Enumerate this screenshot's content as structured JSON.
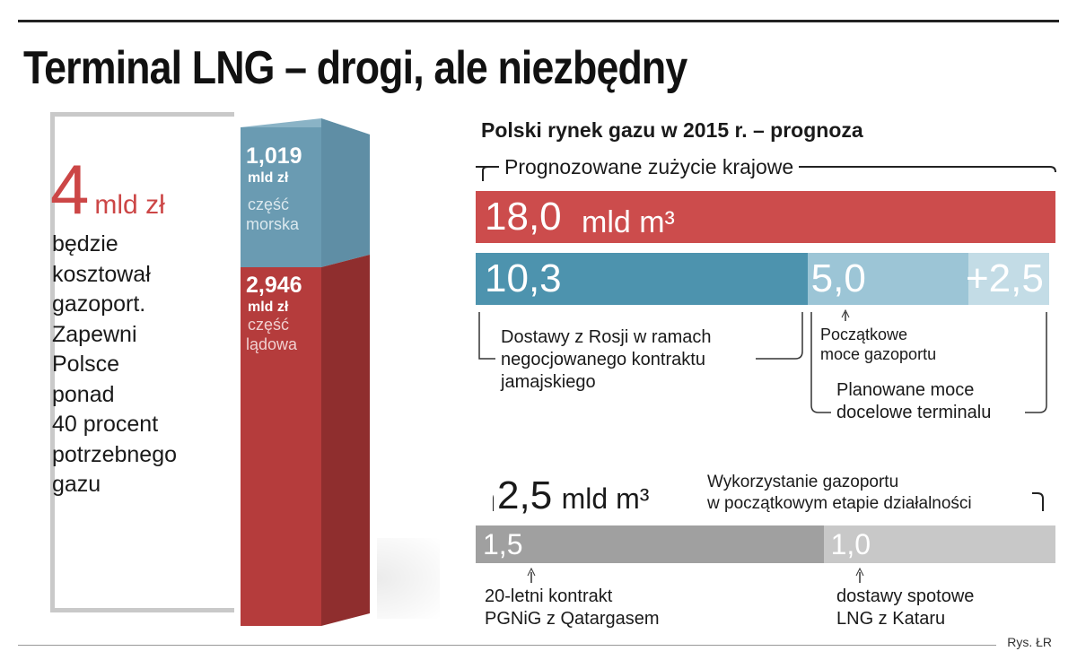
{
  "title": "Terminal LNG – drogi, ale niezbędny",
  "cost": {
    "value": "4",
    "unit": "mld zł",
    "description": [
      "będzie",
      "kosztował",
      "gazoport.",
      "Zapewni",
      "Polsce",
      "ponad",
      "40 procent",
      "potrzebnego",
      "gazu"
    ]
  },
  "subtitle": "Polski rynek gazu w 2015 r. – prognoza",
  "credit": "Rys. ŁR",
  "colors": {
    "red": "#cc4c4c",
    "blue": "#4d93ae",
    "light_blue": "#9cc5d6",
    "lighter_blue": "#c3dce6",
    "grey_dark": "#a0a0a0",
    "grey_light": "#c8c8c8",
    "column_sea": "#6a9bb2",
    "column_land": "#b53c3c"
  },
  "chart_data": [
    {
      "type": "bar",
      "title": "",
      "stacked": true,
      "categories": [
        "gazoport"
      ],
      "series": [
        {
          "name": "część lądowa",
          "values": [
            2.946
          ],
          "label": "2,946",
          "unit": "mld zł"
        },
        {
          "name": "część morska",
          "values": [
            1.019
          ],
          "label": "1,019",
          "unit": "mld zł"
        }
      ]
    },
    {
      "type": "bar",
      "title": "Prognozowane zużycie krajowe",
      "orientation": "horizontal",
      "total": {
        "value": 18.0,
        "label": "18,0",
        "unit": "mld m³"
      },
      "segments": [
        {
          "value": 10.3,
          "label": "10,3",
          "annotation": [
            "Dostawy z Rosji w ramach",
            "negocjowanego kontraktu",
            "jamajskiego"
          ]
        },
        {
          "value": 5.0,
          "label": "5,0",
          "annotation": [
            "Początkowe",
            "moce gazoportu"
          ]
        },
        {
          "value": 2.5,
          "label": "+2,5"
        }
      ],
      "range_annotation": [
        "Planowane moce",
        "docelowe terminalu"
      ]
    },
    {
      "type": "bar",
      "title": "Wykorzystanie gazoportu w początkowym etapie działalności",
      "orientation": "horizontal",
      "total": {
        "value": 2.5,
        "label": "2,5",
        "unit": "mld m³"
      },
      "title_lines": [
        "Wykorzystanie gazoportu",
        "w początkowym etapie działalności"
      ],
      "segments": [
        {
          "value": 1.5,
          "label": "1,5",
          "annotation": [
            "20-letni kontrakt",
            "PGNiG z Qatargasem"
          ]
        },
        {
          "value": 1.0,
          "label": "1,0",
          "annotation": [
            "dostawy spotowe",
            "LNG z Kataru"
          ]
        }
      ]
    }
  ]
}
